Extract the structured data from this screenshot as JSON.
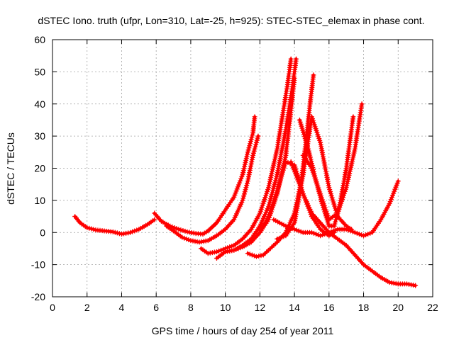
{
  "chart_data": {
    "type": "scatter",
    "title": "dSTEC Iono. truth (ufpr, Lon=310, Lat=-25, h=925): STEC-STEC_elemax in phase cont.",
    "xlabel": "GPS time / hours of day 254 of year 2011",
    "ylabel": "dSTEC  / TECUs",
    "xlim": [
      0,
      22
    ],
    "ylim": [
      -20,
      60
    ],
    "xticks": [
      0,
      2,
      4,
      6,
      8,
      10,
      12,
      14,
      16,
      18,
      20,
      22
    ],
    "yticks": [
      -20,
      -10,
      0,
      10,
      20,
      30,
      40,
      50,
      60
    ],
    "grid": true,
    "marker": "+",
    "color": "#ff0000",
    "series": [
      {
        "x": [
          1.3,
          1.6,
          2.0,
          2.5,
          3.0,
          3.5,
          4.0,
          4.5,
          5.0,
          5.5,
          5.9
        ],
        "y": [
          5,
          3,
          1.5,
          0.8,
          0.5,
          0.2,
          -0.5,
          0,
          1,
          2.5,
          4
        ]
      },
      {
        "x": [
          5.9,
          6.3,
          6.8,
          7.3,
          7.8,
          8.3,
          8.7,
          9.0,
          9.5,
          10.0,
          10.5,
          11.0,
          11.3,
          11.6,
          11.7
        ],
        "y": [
          6,
          3.5,
          2,
          1,
          0.2,
          -0.3,
          -0.5,
          0.5,
          3,
          7,
          11,
          18,
          25,
          31,
          36
        ]
      },
      {
        "x": [
          6.6,
          7.0,
          7.5,
          8.0,
          8.5,
          9.0,
          9.5,
          10.0,
          10.5,
          11.0,
          11.3,
          11.6,
          11.9
        ],
        "y": [
          2,
          0.5,
          -1.5,
          -2.5,
          -3,
          -2.5,
          -1,
          1,
          4,
          10,
          16,
          24,
          30
        ]
      },
      {
        "x": [
          8.6,
          9.0,
          9.5,
          10.0,
          10.5,
          11.0,
          11.5,
          12.0,
          12.5,
          13.0,
          13.3,
          13.6,
          13.8
        ],
        "y": [
          -5,
          -6.5,
          -6,
          -5,
          -4,
          -2,
          1,
          6,
          14,
          26,
          36,
          46,
          54
        ]
      },
      {
        "x": [
          9.5,
          10.0,
          10.5,
          11.0,
          11.5,
          12.0,
          12.5,
          13.0,
          13.5,
          13.9,
          14.1
        ],
        "y": [
          -8,
          -6,
          -5.5,
          -4,
          -2,
          2,
          8,
          18,
          32,
          46,
          54
        ]
      },
      {
        "x": [
          10.0,
          10.5,
          11.0,
          11.5,
          12.0,
          12.5,
          13.0,
          13.5,
          13.8,
          14.0
        ],
        "y": [
          -6,
          -5.5,
          -4.5,
          -3,
          0,
          4,
          12,
          24,
          38,
          48
        ]
      },
      {
        "x": [
          11.3,
          11.8,
          12.2,
          12.6,
          13.0,
          13.5,
          14.0,
          14.4,
          14.7,
          14.9,
          15.1
        ],
        "y": [
          -6.5,
          -7.5,
          -7,
          -5,
          -3,
          0,
          6,
          16,
          30,
          40,
          49
        ]
      },
      {
        "x": [
          12.0,
          12.5,
          13.0,
          13.5,
          14.0,
          14.5,
          15.0,
          15.5,
          16.0,
          16.3
        ],
        "y": [
          0,
          5,
          13,
          22,
          21,
          12,
          5,
          1,
          -1,
          0
        ]
      },
      {
        "x": [
          13.0,
          13.5,
          14.0,
          14.5,
          15.0,
          15.5,
          16.0,
          16.5,
          17.0,
          17.3
        ],
        "y": [
          -2,
          -1,
          3,
          18,
          36,
          28,
          14,
          5,
          2,
          1
        ]
      },
      {
        "x": [
          14.3,
          14.8,
          15.2,
          15.6,
          16.0,
          16.3,
          16.6,
          17.0,
          17.4
        ],
        "y": [
          35,
          26,
          17,
          9,
          2,
          2,
          8,
          20,
          36
        ]
      },
      {
        "x": [
          14.5,
          15.0,
          15.5,
          16.0,
          16.5,
          17.0,
          17.5,
          17.9
        ],
        "y": [
          24,
          20,
          12,
          4,
          6,
          14,
          26,
          40
        ]
      },
      {
        "x": [
          12.8,
          13.5,
          14.0,
          14.5,
          15.0,
          15.5,
          16.0,
          16.5,
          17.0,
          17.5,
          18.0,
          18.5,
          19.0,
          19.5,
          20.0
        ],
        "y": [
          4,
          2,
          1,
          0,
          0,
          -1,
          0,
          1,
          1,
          0,
          -1,
          0,
          4,
          9,
          16
        ]
      },
      {
        "x": [
          13.8,
          14.5,
          15.0,
          15.5,
          16.0,
          16.5,
          17.0,
          17.5,
          18.0,
          18.5,
          19.0,
          19.5,
          20.0,
          20.5,
          21.0
        ],
        "y": [
          22,
          12,
          6,
          3,
          0,
          -2,
          -4,
          -7,
          -10,
          -12,
          -14,
          -15.5,
          -16,
          -16,
          -16.5
        ]
      }
    ]
  }
}
